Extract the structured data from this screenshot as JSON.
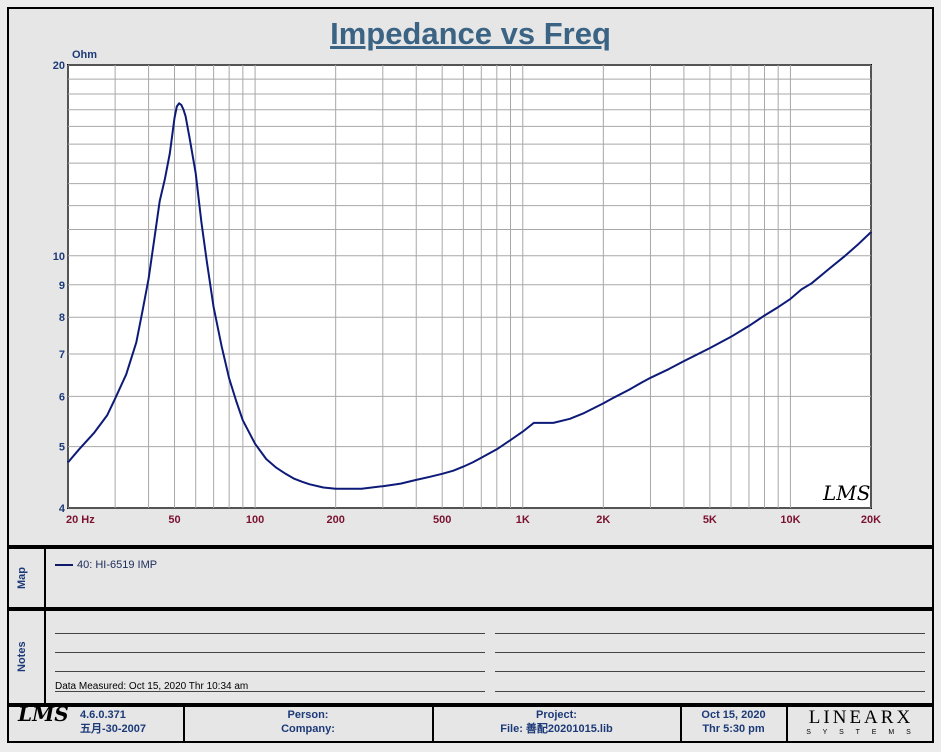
{
  "title": "Impedance vs Freq",
  "y_unit": "Ohm",
  "chart_data": {
    "type": "line",
    "title": "Impedance vs Freq",
    "xlabel": "",
    "ylabel": "Ohm",
    "xscale": "log",
    "yscale": "log",
    "xlim": [
      20,
      20000
    ],
    "ylim": [
      4,
      20
    ],
    "grid": true,
    "x_tick_values": [
      20,
      50,
      100,
      200,
      500,
      1000,
      2000,
      5000,
      10000,
      20000
    ],
    "x_tick_labels": [
      "20  Hz",
      "50",
      "100",
      "200",
      "500",
      "1K",
      "2K",
      "5K",
      "10K",
      "20K"
    ],
    "y_tick_values": [
      4,
      5,
      6,
      7,
      8,
      9,
      10,
      20
    ],
    "y_tick_labels": [
      "4",
      "5",
      "6",
      "7",
      "8",
      "9",
      "10",
      "20"
    ],
    "series": [
      {
        "name": "40: HI-6519  IMP",
        "color": "#0d1a78",
        "x": [
          20,
          22,
          25,
          28,
          30,
          33,
          36,
          38,
          40,
          42,
          44,
          46,
          48,
          50,
          51,
          52,
          53,
          54,
          55,
          57,
          60,
          63,
          66,
          70,
          75,
          80,
          85,
          90,
          100,
          110,
          120,
          130,
          140,
          150,
          160,
          180,
          200,
          250,
          300,
          350,
          400,
          450,
          500,
          550,
          600,
          650,
          700,
          800,
          900,
          1000,
          1100,
          1200,
          1300,
          1500,
          1700,
          1800,
          2000,
          2200,
          2500,
          2800,
          3000,
          3500,
          4000,
          5000,
          6000,
          7000,
          8000,
          9000,
          10000,
          11000,
          12000,
          14000,
          16000,
          18000,
          20000
        ],
        "y": [
          4.72,
          4.95,
          5.25,
          5.6,
          5.95,
          6.5,
          7.3,
          8.2,
          9.2,
          10.6,
          12.2,
          13.2,
          14.5,
          16.5,
          17.2,
          17.4,
          17.3,
          17.0,
          16.6,
          15.3,
          13.5,
          11.3,
          9.8,
          8.3,
          7.2,
          6.4,
          5.9,
          5.5,
          5.05,
          4.78,
          4.63,
          4.53,
          4.45,
          4.4,
          4.36,
          4.31,
          4.29,
          4.29,
          4.33,
          4.37,
          4.43,
          4.48,
          4.53,
          4.58,
          4.65,
          4.72,
          4.8,
          4.95,
          5.12,
          5.28,
          5.45,
          5.45,
          5.45,
          5.53,
          5.65,
          5.72,
          5.85,
          5.98,
          6.15,
          6.32,
          6.42,
          6.62,
          6.82,
          7.15,
          7.45,
          7.75,
          8.05,
          8.3,
          8.55,
          8.85,
          9.05,
          9.55,
          10.0,
          10.45,
          10.9
        ]
      }
    ]
  },
  "map": {
    "label": "Map",
    "legend_entry": "40: HI-6519  IMP"
  },
  "notes": {
    "label": "Notes",
    "measured": "Data Measured: Oct 15, 2020  Thr 10:34 am"
  },
  "footer": {
    "logo": "LMS",
    "version": "4.6.0.371",
    "version_date": "五月-30-2007",
    "person_label": "Person:",
    "company_label": "Company:",
    "project_label": "Project:",
    "file_label": "File: 善配20201015.lib",
    "date": "Oct 15, 2020",
    "time": "Thr  5:30 pm",
    "brand_main": "LINEARX",
    "brand_sub": "S Y S T E M S"
  },
  "chart_logo": "LMS",
  "colors": {
    "curve": "#0d1a78",
    "title": "#3b6384",
    "x_ticks": "#7a1230",
    "y_ticks": "#1c3a78",
    "grid": "#a8a8a8"
  }
}
